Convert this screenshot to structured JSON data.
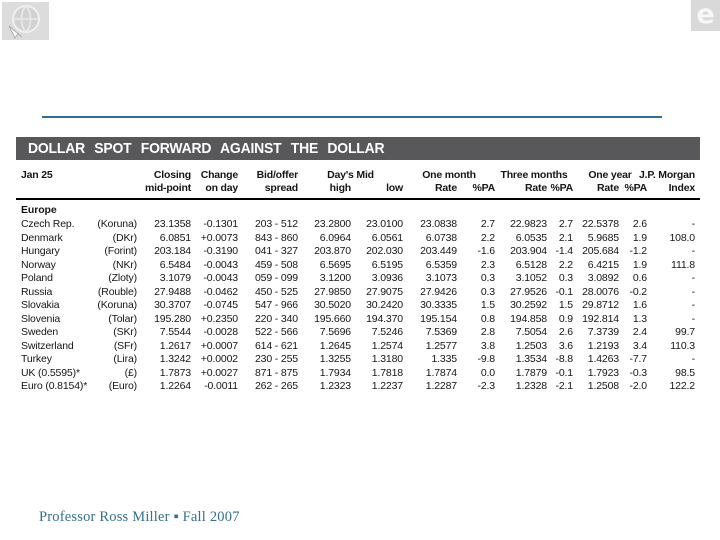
{
  "icons": {
    "top_left": "globe-browser-watermark-icon",
    "top_right": "ie-e-logo-watermark-icon"
  },
  "colors": {
    "title_bar_bg": "#58585A",
    "divider_teal": "#2E6F8F",
    "caption_blue": "#35708F"
  },
  "table": {
    "title": "DOLLAR SPOT FORWARD AGAINST THE DOLLAR",
    "header": {
      "date_label": "Jan 25",
      "closing": "Closing",
      "change": "Change",
      "bid_offer": "Bid/offer",
      "days_mid": "Day's Mid",
      "one_month": "One month",
      "three_months": "Three months",
      "one_year": "One year",
      "jp_morgan": "J.P. Morgan",
      "mid_point": "mid-point",
      "on_day": "on day",
      "spread": "spread",
      "high": "high",
      "low": "low",
      "rate": "Rate",
      "pa": "%PA",
      "index": "Index"
    },
    "section_label": "Europe",
    "rows": [
      [
        "Czech Rep.",
        "(Koruna)",
        "23.1358",
        "-0.1301",
        "203 - 512",
        "23.2800",
        "23.0100",
        "23.0838",
        "2.7",
        "22.9823",
        "2.7",
        "22.5378",
        "2.6",
        "-"
      ],
      [
        "Denmark",
        "(DKr)",
        "6.0851",
        "+0.0073",
        "843 - 860",
        "6.0964",
        "6.0561",
        "6.0738",
        "2.2",
        "6.0535",
        "2.1",
        "5.9685",
        "1.9",
        "108.0"
      ],
      [
        "Hungary",
        "(Forint)",
        "203.184",
        "-0.3190",
        "041 - 327",
        "203.870",
        "202.030",
        "203.449",
        "-1.6",
        "203.904",
        "-1.4",
        "205.684",
        "-1.2",
        "-"
      ],
      [
        "Norway",
        "(NKr)",
        "6.5484",
        "-0.0043",
        "459 - 508",
        "6.5695",
        "6.5195",
        "6.5359",
        "2.3",
        "6.5128",
        "2.2",
        "6.4215",
        "1.9",
        "111.8"
      ],
      [
        "Poland",
        "(Zloty)",
        "3.1079",
        "-0.0043",
        "059 - 099",
        "3.1200",
        "3.0936",
        "3.1073",
        "0.3",
        "3.1052",
        "0.3",
        "3.0892",
        "0.6",
        "-"
      ],
      [
        "Russia",
        "(Rouble)",
        "27.9488",
        "-0.0462",
        "450 - 525",
        "27.9850",
        "27.9075",
        "27.9426",
        "0.3",
        "27.9526",
        "-0.1",
        "28.0076",
        "-0.2",
        "-"
      ],
      [
        "Slovakia",
        "(Koruna)",
        "30.3707",
        "-0.0745",
        "547 - 966",
        "30.5020",
        "30.2420",
        "30.3335",
        "1.5",
        "30.2592",
        "1.5",
        "29.8712",
        "1.6",
        "-"
      ],
      [
        "Slovenia",
        "(Tolar)",
        "195.280",
        "+0.2350",
        "220 - 340",
        "195.660",
        "194.370",
        "195.154",
        "0.8",
        "194.858",
        "0.9",
        "192.814",
        "1.3",
        "-"
      ],
      [
        "Sweden",
        "(SKr)",
        "7.5544",
        "-0.0028",
        "522 - 566",
        "7.5696",
        "7.5246",
        "7.5369",
        "2.8",
        "7.5054",
        "2.6",
        "7.3739",
        "2.4",
        "99.7"
      ],
      [
        "Switzerland",
        "(SFr)",
        "1.2617",
        "+0.0007",
        "614 - 621",
        "1.2645",
        "1.2574",
        "1.2577",
        "3.8",
        "1.2503",
        "3.6",
        "1.2193",
        "3.4",
        "110.3"
      ],
      [
        "Turkey",
        "(Lira)",
        "1.3242",
        "+0.0002",
        "230 - 255",
        "1.3255",
        "1.3180",
        "1.335",
        "-9.8",
        "1.3534",
        "-8.8",
        "1.4263",
        "-7.7",
        "-"
      ],
      [
        "UK (0.5595)*",
        "(£)",
        "1.7873",
        "+0.0027",
        "871 - 875",
        "1.7934",
        "1.7818",
        "1.7874",
        "0.0",
        "1.7879",
        "-0.1",
        "1.7923",
        "-0.3",
        "98.5"
      ],
      [
        "Euro (0.8154)*",
        "(Euro)",
        "1.2264",
        "-0.0011",
        "262 - 265",
        "1.2323",
        "1.2237",
        "1.2287",
        "-2.3",
        "1.2328",
        "-2.1",
        "1.2508",
        "-2.0",
        "122.2"
      ]
    ]
  },
  "footer": {
    "caption": "Professor Ross Miller ▪ Fall 2007"
  }
}
